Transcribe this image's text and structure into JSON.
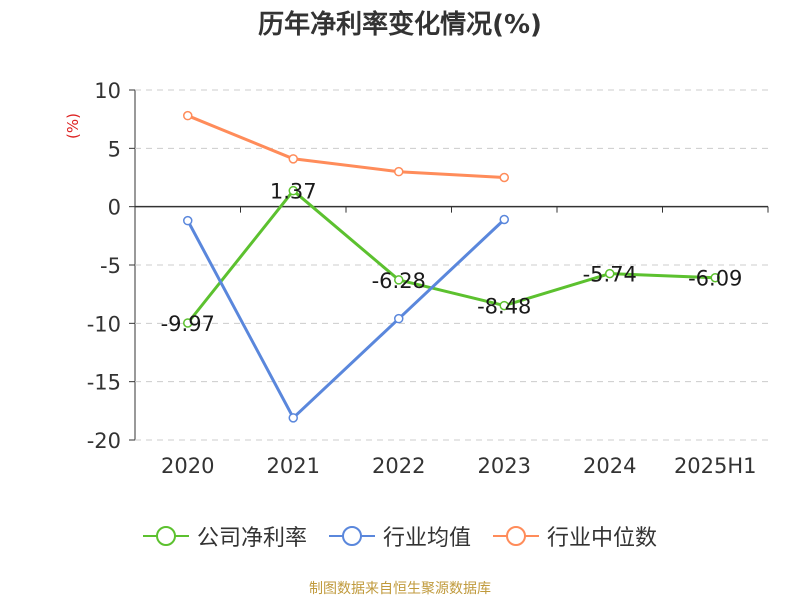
{
  "chart_data": {
    "type": "line",
    "title": "历年净利率变化情况(%)",
    "ylabel": "(%)",
    "xlabel": "",
    "categories": [
      "2020",
      "2021",
      "2022",
      "2023",
      "2024",
      "2025H1"
    ],
    "ylim": [
      -20,
      10
    ],
    "yticks": [
      10,
      5,
      0,
      -5,
      -10,
      -15,
      -20
    ],
    "grid": true,
    "legend_position": "bottom",
    "series": [
      {
        "name": "公司净利率",
        "color": "#5cc12f",
        "values": [
          -9.97,
          1.37,
          -6.28,
          -8.48,
          -5.74,
          -6.09
        ],
        "labels": [
          "-9.97",
          "1.37",
          "-6.28",
          "-8.48",
          "-5.74",
          "-6.09"
        ]
      },
      {
        "name": "行业均值",
        "color": "#5a87dc",
        "values": [
          -1.2,
          -18.1,
          -9.6,
          -1.1,
          null,
          null
        ]
      },
      {
        "name": "行业中位数",
        "color": "#ff8c5a",
        "values": [
          7.8,
          4.1,
          3.0,
          2.5,
          null,
          null
        ]
      }
    ]
  },
  "footer": "制图数据来自恒生聚源数据库"
}
